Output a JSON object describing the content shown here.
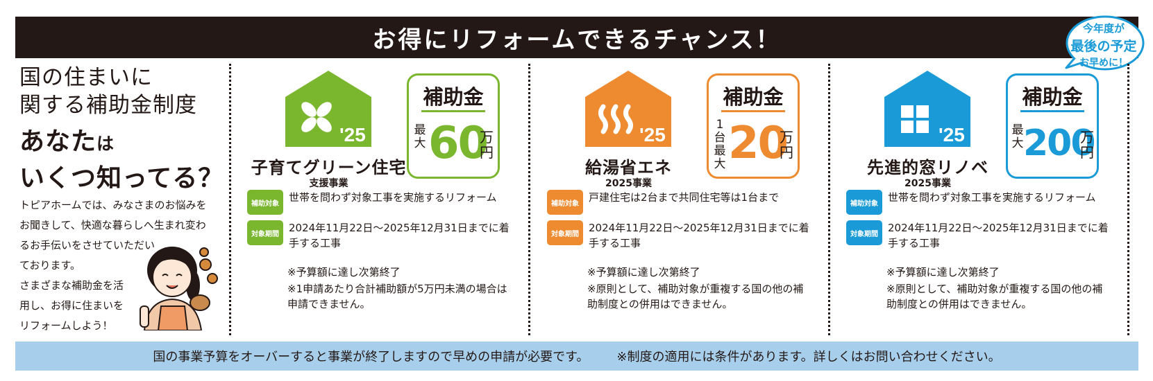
{
  "header": {
    "title": "お得にリフォームできるチャンス！"
  },
  "badge": {
    "line1": "今年度が",
    "line2": "最後の予定",
    "line3": "お早めに！",
    "color": "#1a9bd7"
  },
  "intro": {
    "heading_line1": "国の住まいに",
    "heading_line2": "関する補助金制度",
    "question_a": "あなた",
    "question_b": "は",
    "question_c": "いくつ知ってる？",
    "body": [
      "トピアホームでは、みなさまのお悩みを",
      "お聞きして、快適な暮らしへ生まれ変わ",
      "るお手伝いをさせていただい",
      "ております。",
      "さまざまな補助金を活",
      "用し、お得に住まいを",
      "リフォームしよう！"
    ]
  },
  "panels": [
    {
      "name": "子育てグリーン住宅",
      "sub": "支援事業",
      "year": "'25",
      "color": "#7ab72f",
      "icon": "leaf-cross-icon",
      "subsidy_label": "補助金",
      "prefix": "最大",
      "amount": "60",
      "unit": "万円",
      "tag1": "補助対象",
      "text1": "世帯を問わず対象工事を実施するリフォーム",
      "tag2": "対象期間",
      "text2": "2024年11月22日～2025年12月31日までに着手する工事",
      "note1": "※予算額に達し次第終了",
      "note2": "※1申請あたり合計補助額が5万円未満の場合は申請できません。"
    },
    {
      "name": "給湯省エネ",
      "sub": "2025事業",
      "year": "'25",
      "color": "#ee8a2f",
      "icon": "hot-water-icon",
      "subsidy_label": "補助金",
      "prefix": "1台最大",
      "amount": "20",
      "unit": "万円",
      "tag1": "補助対象",
      "text1": "戸建住宅は2台まで共同住宅等は1台まで",
      "tag2": "対象期間",
      "text2": "2024年11月22日～2025年12月31日までに着手する工事",
      "note1": "※予算額に達し次第終了",
      "note2": "※原則として、補助対象が重複する国の他の補助制度との併用はできません。"
    },
    {
      "name": "先進的窓リノベ",
      "sub": "2025事業",
      "year": "'25",
      "color": "#1a9bd7",
      "icon": "window-icon",
      "subsidy_label": "補助金",
      "prefix": "最大",
      "amount": "200",
      "unit": "万円",
      "tag1": "補助対象",
      "text1": "世帯を問わず対象工事を実施するリフォーム",
      "tag2": "対象期間",
      "text2": "2024年11月22日～2025年12月31日までに着手する工事",
      "note1": "※予算額に達し次第終了",
      "note2": "※原則として、補助対象が重複する国の他の補助制度との併用はできません。"
    }
  ],
  "footer": {
    "text1": "国の事業予算をオーバーすると事業が終了しますので早めの申請が必要です。",
    "text2": "※制度の適用には条件があります。詳しくはお問い合わせください。"
  }
}
